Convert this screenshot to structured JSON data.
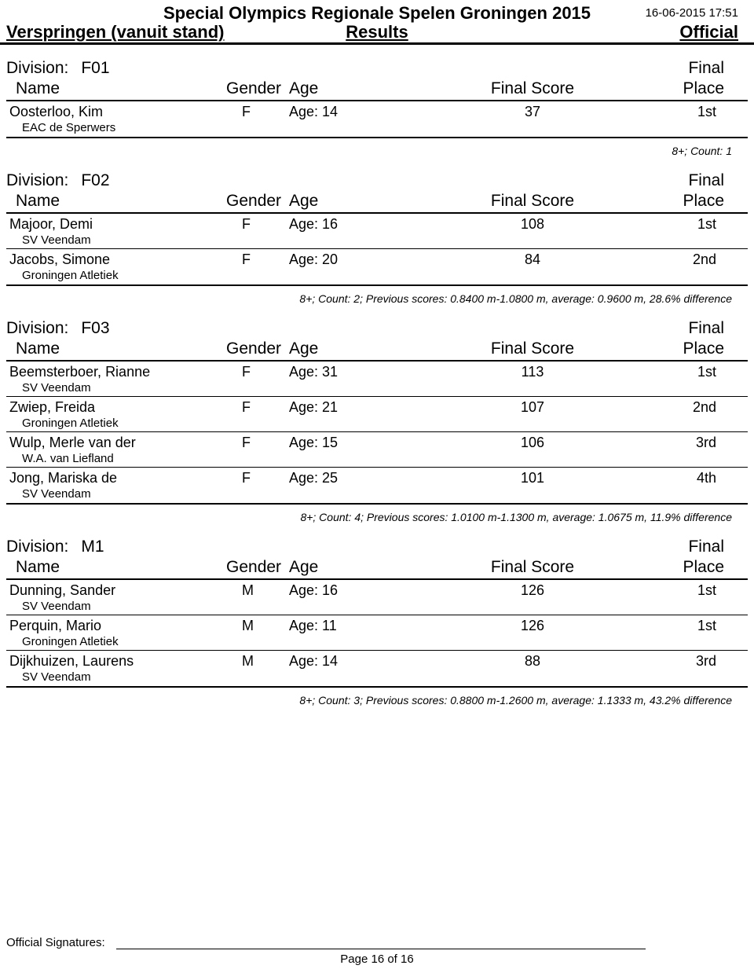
{
  "header": {
    "event_title": "Special Olympics Regionale Spelen Groningen 2015",
    "timestamp": "16-06-2015 17:51",
    "event_name": "Verspringen (vanuit stand)",
    "results_label": "Results",
    "official_label": "Official"
  },
  "labels": {
    "division": "Division:",
    "final": "Final",
    "name": "Name",
    "gender": "Gender",
    "age": "Age",
    "final_score": "Final Score",
    "place": "Place",
    "age_prefix": "Age:"
  },
  "divisions": [
    {
      "code": "F01",
      "pre_summary": "",
      "athletes": [
        {
          "name": "Oosterloo, Kim",
          "club": "EAC de Sperwers",
          "gender": "F",
          "age": "14",
          "score": "37",
          "place": "1st"
        }
      ],
      "summary": "8+; Count: 1"
    },
    {
      "code": "F02",
      "pre_summary": "",
      "athletes": [
        {
          "name": "Majoor, Demi",
          "club": "SV Veendam",
          "gender": "F",
          "age": "16",
          "score": "108",
          "place": "1st"
        },
        {
          "name": "Jacobs, Simone",
          "club": "Groningen Atletiek",
          "gender": "F",
          "age": "20",
          "score": "84",
          "place": "2nd"
        }
      ],
      "summary": "8+; Count: 2; Previous scores: 0.8400 m-1.0800 m, average: 0.9600 m, 28.6% difference"
    },
    {
      "code": "F03",
      "pre_summary": "",
      "athletes": [
        {
          "name": "Beemsterboer, Rianne",
          "club": "SV Veendam",
          "gender": "F",
          "age": "31",
          "score": "113",
          "place": "1st"
        },
        {
          "name": "Zwiep, Freida",
          "club": "Groningen Atletiek",
          "gender": "F",
          "age": "21",
          "score": "107",
          "place": "2nd"
        },
        {
          "name": "Wulp, Merle van der",
          "club": "W.A. van Liefland",
          "gender": "F",
          "age": "15",
          "score": "106",
          "place": "3rd"
        },
        {
          "name": "Jong, Mariska de",
          "club": "SV Veendam",
          "gender": "F",
          "age": "25",
          "score": "101",
          "place": "4th"
        }
      ],
      "summary": "8+; Count: 4; Previous scores: 1.0100 m-1.1300 m, average: 1.0675 m, 11.9% difference"
    },
    {
      "code": "M1",
      "pre_summary": "",
      "athletes": [
        {
          "name": "Dunning, Sander",
          "club": "SV Veendam",
          "gender": "M",
          "age": "16",
          "score": "126",
          "place": "1st"
        },
        {
          "name": "Perquin, Mario",
          "club": "Groningen Atletiek",
          "gender": "M",
          "age": "11",
          "score": "126",
          "place": "1st"
        },
        {
          "name": "Dijkhuizen, Laurens",
          "club": "SV Veendam",
          "gender": "M",
          "age": "14",
          "score": "88",
          "place": "3rd"
        }
      ],
      "summary": "8+; Count: 3; Previous scores: 0.8800 m-1.2600 m, average: 1.1333 m, 43.2% difference"
    }
  ],
  "footer": {
    "signatures_label": "Official Signatures:",
    "page": "Page 16 of 16"
  }
}
